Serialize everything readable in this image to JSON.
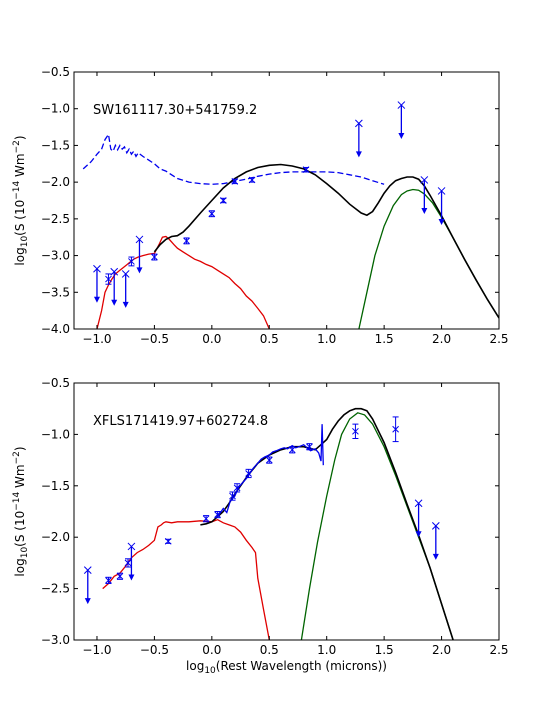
{
  "chart_data": [
    {
      "type": "line",
      "annotation": "SW161117.30+541759.2",
      "xlabel": "",
      "ylabel": "log10(S (10^-14 Wm^-2))",
      "ylabel_parts": {
        "pre": "log",
        "sub": "10",
        "mid": "(S (10",
        "sup": "−14",
        "post": " Wm",
        "sup2": "−2",
        "end": ")"
      },
      "xlim": [
        -1.2,
        2.5
      ],
      "ylim": [
        -4.0,
        -0.5
      ],
      "xticks": [
        -1.0,
        -0.5,
        0.0,
        0.5,
        1.0,
        1.5,
        2.0,
        2.5
      ],
      "xtick_labels": [
        "−1.0",
        "−0.5",
        "0.0",
        "0.5",
        "1.0",
        "1.5",
        "2.0",
        "2.5"
      ],
      "yticks": [
        -4.0,
        -3.5,
        -3.0,
        -2.5,
        -2.0,
        -1.5,
        -1.0,
        -0.5
      ],
      "ytick_labels": [
        "−4.0",
        "−3.5",
        "−3.0",
        "−2.5",
        "−2.0",
        "−1.5",
        "−1.0",
        "−0.5"
      ],
      "grid": false,
      "series": [
        {
          "style": "dashed",
          "color": "#0000ee",
          "x": [
            -1.12,
            -1.05,
            -1.0,
            -0.96,
            -0.93,
            -0.9,
            -0.88,
            -0.86,
            -0.84,
            -0.82,
            -0.8,
            -0.78,
            -0.76,
            -0.74,
            -0.72,
            -0.7,
            -0.68,
            -0.66,
            -0.64,
            -0.6,
            -0.55,
            -0.5,
            -0.45,
            -0.4,
            -0.35,
            -0.3,
            -0.2,
            -0.1,
            0.0,
            0.1,
            0.2,
            0.3,
            0.4,
            0.5,
            0.6,
            0.7,
            0.8,
            0.9,
            1.0,
            1.1,
            1.2,
            1.3,
            1.4,
            1.5
          ],
          "y": [
            -1.82,
            -1.72,
            -1.62,
            -1.55,
            -1.42,
            -1.35,
            -1.55,
            -1.58,
            -1.5,
            -1.56,
            -1.5,
            -1.55,
            -1.52,
            -1.6,
            -1.55,
            -1.62,
            -1.58,
            -1.65,
            -1.6,
            -1.65,
            -1.7,
            -1.75,
            -1.82,
            -1.85,
            -1.9,
            -1.95,
            -2.0,
            -2.02,
            -2.03,
            -2.02,
            -1.99,
            -1.96,
            -1.92,
            -1.89,
            -1.87,
            -1.86,
            -1.86,
            -1.86,
            -1.86,
            -1.87,
            -1.9,
            -1.93,
            -1.98,
            -2.03
          ]
        },
        {
          "style": "solid",
          "color": "#e00000",
          "x": [
            -1.0,
            -0.96,
            -0.93,
            -0.9,
            -0.87,
            -0.84,
            -0.8,
            -0.76,
            -0.72,
            -0.68,
            -0.64,
            -0.6,
            -0.55,
            -0.5,
            -0.46,
            -0.43,
            -0.4,
            -0.37,
            -0.33,
            -0.3,
            -0.25,
            -0.2,
            -0.15,
            -0.1,
            -0.05,
            0.0,
            0.05,
            0.1,
            0.15,
            0.2,
            0.25,
            0.3,
            0.35,
            0.4,
            0.45,
            0.5
          ],
          "y": [
            -4.0,
            -3.75,
            -3.5,
            -3.4,
            -3.32,
            -3.25,
            -3.2,
            -3.15,
            -3.1,
            -3.05,
            -3.02,
            -3.0,
            -2.98,
            -2.97,
            -2.85,
            -2.75,
            -2.74,
            -2.78,
            -2.85,
            -2.9,
            -2.95,
            -3.0,
            -3.05,
            -3.08,
            -3.12,
            -3.15,
            -3.2,
            -3.25,
            -3.3,
            -3.38,
            -3.45,
            -3.55,
            -3.62,
            -3.72,
            -3.82,
            -4.0
          ]
        },
        {
          "style": "solid",
          "color": "#006400",
          "x": [
            1.28,
            1.35,
            1.42,
            1.5,
            1.58,
            1.65,
            1.7,
            1.75,
            1.8,
            1.85,
            1.92,
            2.0,
            2.1,
            2.2,
            2.3,
            2.4,
            2.5
          ],
          "y": [
            -4.0,
            -3.5,
            -3.0,
            -2.6,
            -2.32,
            -2.17,
            -2.12,
            -2.1,
            -2.11,
            -2.16,
            -2.28,
            -2.48,
            -2.76,
            -3.05,
            -3.33,
            -3.6,
            -3.85
          ]
        },
        {
          "style": "solid",
          "color": "#000000",
          "x": [
            -0.5,
            -0.45,
            -0.4,
            -0.35,
            -0.3,
            -0.25,
            -0.2,
            -0.1,
            0.0,
            0.1,
            0.2,
            0.3,
            0.4,
            0.5,
            0.6,
            0.7,
            0.8,
            0.9,
            1.0,
            1.1,
            1.2,
            1.3,
            1.35,
            1.4,
            1.45,
            1.5,
            1.55,
            1.6,
            1.65,
            1.7,
            1.75,
            1.8,
            1.85,
            1.9,
            2.0,
            2.1,
            2.2,
            2.3,
            2.4,
            2.5
          ],
          "y": [
            -2.95,
            -2.85,
            -2.78,
            -2.74,
            -2.73,
            -2.68,
            -2.6,
            -2.42,
            -2.25,
            -2.08,
            -1.95,
            -1.86,
            -1.8,
            -1.77,
            -1.76,
            -1.78,
            -1.82,
            -1.9,
            -2.02,
            -2.15,
            -2.3,
            -2.42,
            -2.45,
            -2.4,
            -2.28,
            -2.15,
            -2.05,
            -1.98,
            -1.95,
            -1.93,
            -1.93,
            -1.96,
            -2.05,
            -2.18,
            -2.46,
            -2.76,
            -3.05,
            -3.33,
            -3.6,
            -3.85
          ]
        }
      ],
      "points": [
        {
          "x": -0.9,
          "y": -3.32,
          "err": 0.07
        },
        {
          "x": -0.7,
          "y": -3.08,
          "err": 0.06
        },
        {
          "x": -0.5,
          "y": -3.02,
          "err": 0.04
        },
        {
          "x": -0.22,
          "y": -2.8,
          "err": 0.04
        },
        {
          "x": 0.0,
          "y": -2.43,
          "err": 0.04
        },
        {
          "x": 0.1,
          "y": -2.25,
          "err": 0.03
        },
        {
          "x": 0.2,
          "y": -1.99,
          "err": 0.03
        },
        {
          "x": 0.35,
          "y": -1.97,
          "err": 0.03
        },
        {
          "x": 0.82,
          "y": -1.83,
          "err": 0.03
        }
      ],
      "upper_limits": [
        {
          "x": -1.0,
          "y": -3.18
        },
        {
          "x": -0.85,
          "y": -3.22
        },
        {
          "x": -0.75,
          "y": -3.25
        },
        {
          "x": -0.63,
          "y": -2.78
        },
        {
          "x": 1.28,
          "y": -1.2
        },
        {
          "x": 1.65,
          "y": -0.95
        },
        {
          "x": 1.85,
          "y": -1.97
        },
        {
          "x": 2.0,
          "y": -2.12
        }
      ]
    },
    {
      "type": "line",
      "annotation": "XFLS171419.97+602724.8",
      "xlabel": "log10(Rest Wavelength (microns))",
      "xlabel_parts": {
        "pre": "log",
        "sub": "10",
        "post": "(Rest Wavelength (microns))"
      },
      "ylabel": "log10(S (10^-14 Wm^-2))",
      "ylabel_parts": {
        "pre": "log",
        "sub": "10",
        "mid": "(S (10",
        "sup": "−14",
        "post": " Wm",
        "sup2": "−2",
        "end": ")"
      },
      "xlim": [
        -1.2,
        2.5
      ],
      "ylim": [
        -3.0,
        -0.5
      ],
      "xticks": [
        -1.0,
        -0.5,
        0.0,
        0.5,
        1.0,
        1.5,
        2.0,
        2.5
      ],
      "xtick_labels": [
        "−1.0",
        "−0.5",
        "0.0",
        "0.5",
        "1.0",
        "1.5",
        "2.0",
        "2.5"
      ],
      "yticks": [
        -3.0,
        -2.5,
        -2.0,
        -1.5,
        -1.0,
        -0.5
      ],
      "ytick_labels": [
        "−3.0",
        "−2.5",
        "−2.0",
        "−1.5",
        "−1.0",
        "−0.5"
      ],
      "grid": false,
      "series": [
        {
          "style": "solid",
          "color": "#e00000",
          "x": [
            -0.95,
            -0.9,
            -0.85,
            -0.8,
            -0.75,
            -0.7,
            -0.65,
            -0.6,
            -0.55,
            -0.5,
            -0.47,
            -0.44,
            -0.42,
            -0.4,
            -0.35,
            -0.3,
            -0.2,
            -0.1,
            0.0,
            0.05,
            0.1,
            0.15,
            0.2,
            0.25,
            0.3,
            0.35,
            0.38,
            0.4,
            0.45,
            0.5
          ],
          "y": [
            -2.5,
            -2.45,
            -2.38,
            -2.35,
            -2.28,
            -2.2,
            -2.15,
            -2.12,
            -2.08,
            -2.03,
            -1.9,
            -1.88,
            -1.86,
            -1.85,
            -1.86,
            -1.85,
            -1.85,
            -1.84,
            -1.85,
            -1.83,
            -1.86,
            -1.88,
            -1.9,
            -1.95,
            -2.03,
            -2.1,
            -2.15,
            -2.4,
            -2.7,
            -3.0
          ]
        },
        {
          "style": "solid",
          "color": "#006400",
          "x": [
            0.78,
            0.85,
            0.92,
            1.0,
            1.07,
            1.13,
            1.2,
            1.27,
            1.33,
            1.4,
            1.5,
            1.6,
            1.7,
            1.8,
            1.9,
            2.0,
            2.1
          ],
          "y": [
            -3.0,
            -2.5,
            -2.05,
            -1.6,
            -1.25,
            -1.0,
            -0.85,
            -0.79,
            -0.81,
            -0.9,
            -1.12,
            -1.4,
            -1.7,
            -2.0,
            -2.3,
            -2.65,
            -3.0
          ]
        },
        {
          "style": "solid",
          "color": "#000000",
          "x": [
            -0.1,
            -0.05,
            0.0,
            0.05,
            0.1,
            0.15,
            0.2,
            0.25,
            0.3,
            0.35,
            0.4,
            0.5,
            0.6,
            0.7,
            0.8,
            0.9,
            0.95,
            1.0,
            1.05,
            1.1,
            1.15,
            1.2,
            1.25,
            1.3,
            1.35,
            1.4,
            1.5,
            1.6,
            1.7,
            1.8,
            1.9,
            2.0,
            2.1
          ],
          "y": [
            -1.88,
            -1.87,
            -1.85,
            -1.8,
            -1.75,
            -1.67,
            -1.58,
            -1.5,
            -1.42,
            -1.35,
            -1.28,
            -1.2,
            -1.15,
            -1.12,
            -1.12,
            -1.15,
            -1.1,
            -1.05,
            -0.95,
            -0.87,
            -0.81,
            -0.77,
            -0.75,
            -0.75,
            -0.77,
            -0.85,
            -1.08,
            -1.37,
            -1.68,
            -1.98,
            -2.3,
            -2.65,
            -3.0
          ]
        },
        {
          "style": "solid",
          "color": "#0000ee",
          "x": [
            0.05,
            0.1,
            0.13,
            0.16,
            0.2,
            0.23,
            0.26,
            0.3,
            0.33,
            0.36,
            0.4,
            0.43,
            0.46,
            0.5,
            0.53,
            0.56,
            0.6,
            0.63,
            0.66,
            0.7,
            0.73,
            0.76,
            0.8,
            0.83,
            0.86,
            0.9,
            0.93,
            0.95,
            0.96,
            0.97
          ],
          "y": [
            -1.8,
            -1.72,
            -1.76,
            -1.65,
            -1.6,
            -1.52,
            -1.48,
            -1.43,
            -1.38,
            -1.33,
            -1.28,
            -1.24,
            -1.22,
            -1.2,
            -1.17,
            -1.16,
            -1.14,
            -1.13,
            -1.14,
            -1.11,
            -1.13,
            -1.12,
            -1.1,
            -1.13,
            -1.16,
            -1.14,
            -1.18,
            -1.26,
            -0.9,
            -1.3
          ]
        }
      ],
      "points": [
        {
          "x": -0.9,
          "y": -2.42,
          "err": 0.03
        },
        {
          "x": -0.8,
          "y": -2.38,
          "err": 0.03
        },
        {
          "x": -0.73,
          "y": -2.25,
          "err": 0.04
        },
        {
          "x": -0.38,
          "y": -2.04,
          "err": 0.02
        },
        {
          "x": -0.05,
          "y": -1.82,
          "err": 0.03
        },
        {
          "x": 0.05,
          "y": -1.78,
          "err": 0.03
        },
        {
          "x": 0.18,
          "y": -1.6,
          "err": 0.04
        },
        {
          "x": 0.22,
          "y": -1.52,
          "err": 0.04
        },
        {
          "x": 0.32,
          "y": -1.38,
          "err": 0.04
        },
        {
          "x": 0.5,
          "y": -1.25,
          "err": 0.03
        },
        {
          "x": 0.7,
          "y": -1.15,
          "err": 0.03
        },
        {
          "x": 0.85,
          "y": -1.12,
          "err": 0.03
        },
        {
          "x": 1.25,
          "y": -0.97,
          "err": 0.07
        },
        {
          "x": 1.6,
          "y": -0.95,
          "err": 0.12
        }
      ],
      "upper_limits": [
        {
          "x": -1.08,
          "y": -2.32
        },
        {
          "x": -0.7,
          "y": -2.09
        },
        {
          "x": 1.8,
          "y": -1.67
        },
        {
          "x": 1.95,
          "y": -1.89
        }
      ]
    }
  ]
}
